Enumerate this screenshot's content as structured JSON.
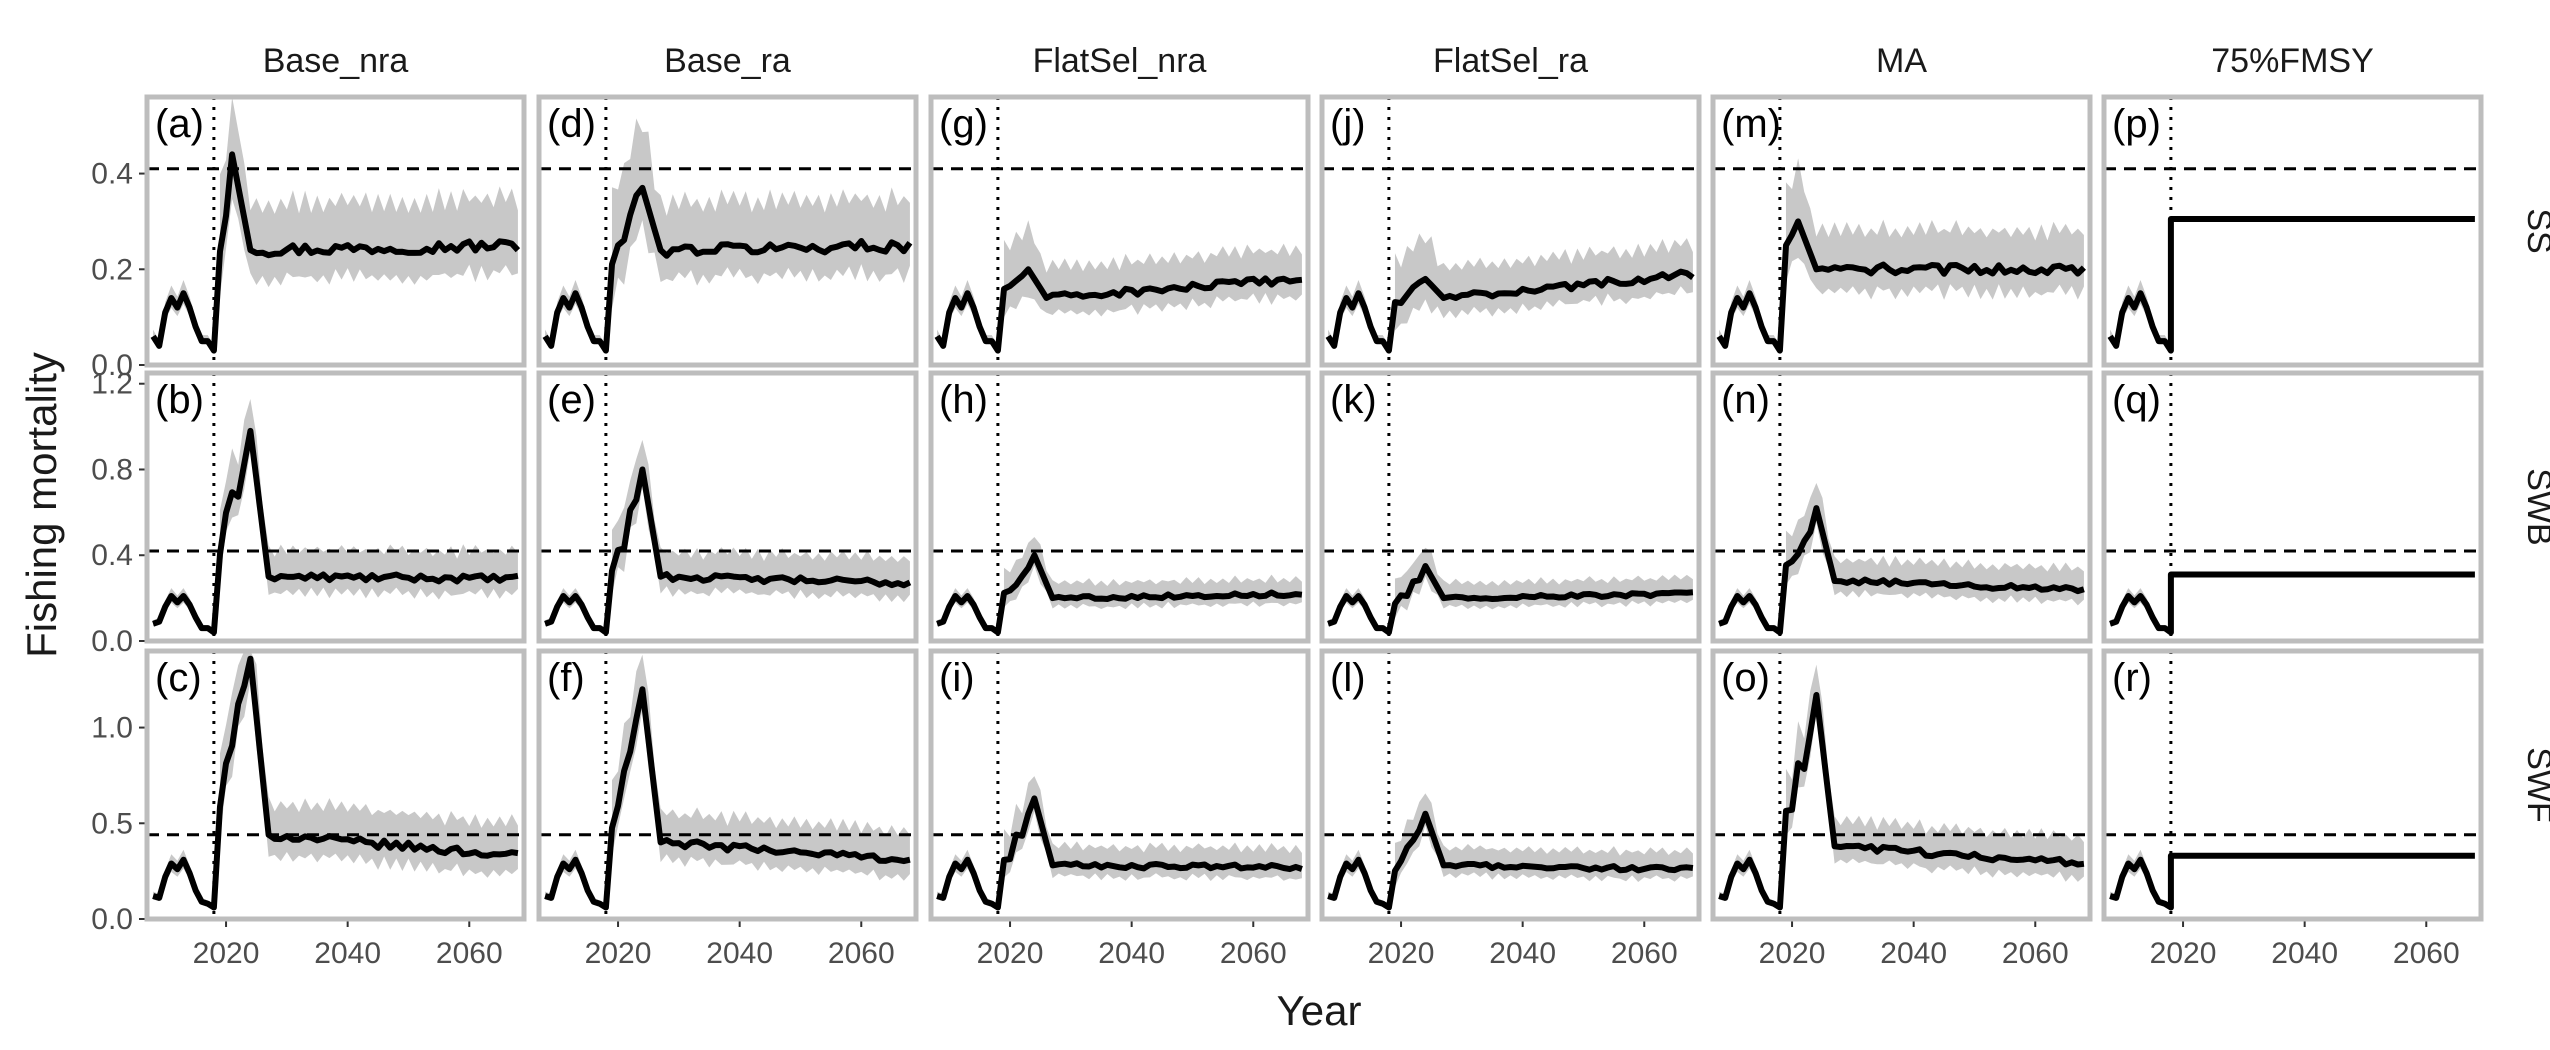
{
  "chart_data": {
    "type": "line",
    "xlabel": "Year",
    "ylabel": "Fishing mortality",
    "columns": [
      "Base_nra",
      "Base_ra",
      "FlatSel_nra",
      "FlatSel_ra",
      "MA",
      "75%FMSY"
    ],
    "rows": [
      "SS",
      "SWB",
      "SWF"
    ],
    "xlim": [
      2007,
      2069
    ],
    "x_ticks": [
      "2020",
      "2040",
      "2060"
    ],
    "y_axes": {
      "SS": {
        "ylim": [
          0,
          0.56
        ],
        "ticks": [
          "0.0",
          "0.2",
          "0.4"
        ]
      },
      "SWB": {
        "ylim": [
          0,
          1.25
        ],
        "ticks": [
          "0.0",
          "0.4",
          "0.8",
          "1.2"
        ]
      },
      "SWF": {
        "ylim": [
          0,
          1.4
        ],
        "ticks": [
          "0.0",
          "0.5",
          "1.0"
        ]
      }
    },
    "reference_year": 2018,
    "fmsy_reference": {
      "SS": 0.41,
      "SWB": 0.42,
      "SWF": 0.44
    },
    "historical_years": [
      2008,
      2009,
      2010,
      2011,
      2012,
      2013,
      2014,
      2015,
      2016,
      2017,
      2018
    ],
    "historical": {
      "SS": [
        0.06,
        0.04,
        0.11,
        0.14,
        0.12,
        0.15,
        0.12,
        0.08,
        0.05,
        0.05,
        0.03
      ],
      "SWB": [
        0.08,
        0.09,
        0.16,
        0.21,
        0.18,
        0.21,
        0.17,
        0.11,
        0.06,
        0.06,
        0.04
      ],
      "SWF": [
        0.12,
        0.11,
        0.22,
        0.29,
        0.26,
        0.31,
        0.24,
        0.15,
        0.09,
        0.08,
        0.06
      ]
    },
    "panels": [
      {
        "id": "(a)",
        "column": "Base_nra",
        "row": "SS",
        "peak_year": 2021,
        "peak": 0.44,
        "transition_start": 0.18,
        "transition_end": 0.24,
        "final": 0.25,
        "band": 0.11
      },
      {
        "id": "(b)",
        "column": "Base_nra",
        "row": "SWB",
        "peak_year": 2024,
        "peak": 0.98,
        "transition_start": 0.35,
        "transition_end": 0.3,
        "final": 0.29,
        "band": 0.14
      },
      {
        "id": "(c)",
        "column": "Base_nra",
        "row": "SWF",
        "peak_year": 2024,
        "peak": 1.36,
        "transition_start": 0.5,
        "transition_end": 0.44,
        "final": 0.33,
        "band": 0.19
      },
      {
        "id": "(d)",
        "column": "Base_ra",
        "row": "SS",
        "peak_year": 2024,
        "peak": 0.37,
        "transition_start": 0.19,
        "transition_end": 0.24,
        "final": 0.25,
        "band": 0.11
      },
      {
        "id": "(e)",
        "column": "Base_ra",
        "row": "SWB",
        "peak_year": 2024,
        "peak": 0.8,
        "transition_start": 0.26,
        "transition_end": 0.3,
        "final": 0.27,
        "band": 0.13
      },
      {
        "id": "(f)",
        "column": "Base_ra",
        "row": "SWF",
        "peak_year": 2024,
        "peak": 1.2,
        "transition_start": 0.36,
        "transition_end": 0.4,
        "final": 0.31,
        "band": 0.17
      },
      {
        "id": "(g)",
        "column": "FlatSel_nra",
        "row": "SS",
        "peak_year": 2023,
        "peak": 0.2,
        "transition_start": 0.15,
        "transition_end": 0.14,
        "final": 0.18,
        "band": 0.07
      },
      {
        "id": "(h)",
        "column": "FlatSel_nra",
        "row": "SWB",
        "peak_year": 2024,
        "peak": 0.4,
        "transition_start": 0.19,
        "transition_end": 0.2,
        "final": 0.22,
        "band": 0.08
      },
      {
        "id": "(i)",
        "column": "FlatSel_nra",
        "row": "SWF",
        "peak_year": 2024,
        "peak": 0.63,
        "transition_start": 0.24,
        "transition_end": 0.28,
        "final": 0.27,
        "band": 0.11
      },
      {
        "id": "(j)",
        "column": "FlatSel_ra",
        "row": "SS",
        "peak_year": 2024,
        "peak": 0.18,
        "transition_start": 0.12,
        "transition_end": 0.14,
        "final": 0.19,
        "band": 0.07
      },
      {
        "id": "(k)",
        "column": "FlatSel_ra",
        "row": "SWB",
        "peak_year": 2024,
        "peak": 0.35,
        "transition_start": 0.13,
        "transition_end": 0.2,
        "final": 0.22,
        "band": 0.08
      },
      {
        "id": "(l)",
        "column": "FlatSel_ra",
        "row": "SWF",
        "peak_year": 2024,
        "peak": 0.55,
        "transition_start": 0.17,
        "transition_end": 0.28,
        "final": 0.26,
        "band": 0.1
      },
      {
        "id": "(m)",
        "column": "MA",
        "row": "SS",
        "peak_year": 2021,
        "peak": 0.3,
        "transition_start": 0.22,
        "transition_end": 0.2,
        "final": 0.2,
        "band": 0.09
      },
      {
        "id": "(n)",
        "column": "MA",
        "row": "SWB",
        "peak_year": 2024,
        "peak": 0.62,
        "transition_start": 0.27,
        "transition_end": 0.28,
        "final": 0.24,
        "band": 0.11
      },
      {
        "id": "(o)",
        "column": "MA",
        "row": "SWF",
        "peak_year": 2024,
        "peak": 1.17,
        "transition_start": 0.36,
        "transition_end": 0.38,
        "final": 0.29,
        "band": 0.15
      },
      {
        "id": "(p)",
        "column": "75%FMSY",
        "row": "SS",
        "constant": 0.305
      },
      {
        "id": "(q)",
        "column": "75%FMSY",
        "row": "SWB",
        "constant": 0.31
      },
      {
        "id": "(r)",
        "column": "75%FMSY",
        "row": "SWF",
        "constant": 0.33
      }
    ]
  }
}
